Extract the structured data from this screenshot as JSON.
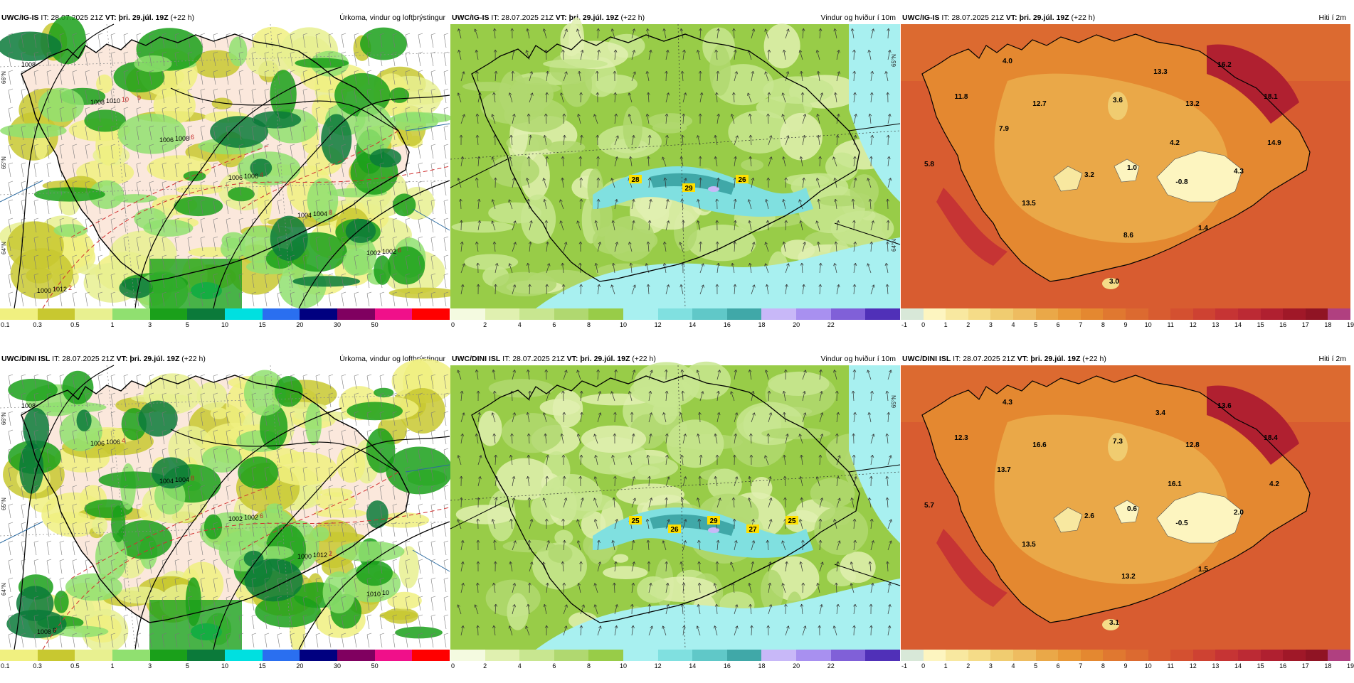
{
  "panels": [
    {
      "model": "UWC/IG-IS",
      "it_label": "IT:",
      "it": "28.07.2025 21Z",
      "vt_label": "VT:",
      "vt": "þri. 29.júl. 19Z",
      "lead": "(+22 h)",
      "title": "Úrkoma, vindur og loftþrýstingur",
      "type": "precip",
      "ticks": [
        "0.1",
        "0.3",
        "0.5",
        "1",
        "3",
        "5",
        "10",
        "15",
        "20",
        "30",
        "50"
      ],
      "colors": [
        "#f0f080",
        "#c8c830",
        "#e8f090",
        "#90e070",
        "#1aa01a",
        "#0b7a3a",
        "#00e0e0",
        "#2a6ff0",
        "#000080",
        "#800060",
        "#f0108a",
        "#ff0000"
      ],
      "map_labels": [
        "1008",
        "1008",
        "1006",
        "1006",
        "1004",
        "1002",
        "1000",
        "1010",
        "1008",
        "1006",
        "1004",
        "1002",
        "1012",
        "10",
        "6",
        "4",
        "8",
        "6",
        "2",
        "9"
      ],
      "lat_labels": [
        "66°N",
        "65°N",
        "64°N"
      ]
    },
    {
      "model": "UWC/IG-IS",
      "it_label": "IT:",
      "it": "28.07.2025 21Z",
      "vt_label": "VT:",
      "vt": "þri. 29.júl. 19Z",
      "lead": "(+22 h)",
      "title": "Vindur og hviður í 10m",
      "type": "wind",
      "ticks": [
        "0",
        "2",
        "4",
        "6",
        "8",
        "10",
        "12",
        "14",
        "16",
        "18",
        "20",
        "22"
      ],
      "colors": [
        "#f4fae0",
        "#e0f0b0",
        "#c8e690",
        "#b0d870",
        "#98cc48",
        "#a8f0f0",
        "#80e0e0",
        "#60c8c8",
        "#40a8a8",
        "#c8b8f8",
        "#a890f0",
        "#8060d8",
        "#5030b8"
      ],
      "values": [
        "28",
        "29",
        "26"
      ],
      "lat_labels": [
        "65°N",
        "64°N"
      ]
    },
    {
      "model": "UWC/IG-IS",
      "it_label": "IT:",
      "it": "28.07.2025 21Z",
      "vt_label": "VT:",
      "vt": "þri. 29.júl. 19Z",
      "lead": "(+22 h)",
      "title": "Hiti í 2m",
      "type": "temp",
      "ticks": [
        "-1",
        "0",
        "1",
        "2",
        "3",
        "4",
        "5",
        "6",
        "7",
        "8",
        "9",
        "10",
        "11",
        "12",
        "13",
        "14",
        "15",
        "16",
        "17",
        "18",
        "19"
      ],
      "colors": [
        "#d8e8d8",
        "#fdf5c0",
        "#f8e8a0",
        "#f5dc88",
        "#f0cc70",
        "#eebc60",
        "#eaa848",
        "#e89838",
        "#e48830",
        "#e07830",
        "#dc6a30",
        "#d85c30",
        "#d45030",
        "#ce4232",
        "#c63434",
        "#bc2a34",
        "#b02030",
        "#a01828",
        "#901424",
        "#b04080"
      ],
      "values": [
        "4.0",
        "11.8",
        "7.9",
        "12.7",
        "3.6",
        "13.3",
        "16.2",
        "18.1",
        "13.2",
        "14.9",
        "4.2",
        "5.8",
        "3.2",
        "1.0",
        "-0.8",
        "4.3",
        "13.5",
        "1.4",
        "8.6",
        "3.0"
      ]
    },
    {
      "model": "UWC/DINI ISL",
      "it_label": "IT:",
      "it": "28.07.2025 21Z",
      "vt_label": "VT:",
      "vt": "þri. 29.júl. 19Z",
      "lead": "(+22 h)",
      "title": "Úrkoma, vindur og loftþrýstingur",
      "type": "precip",
      "ticks": [
        "0.1",
        "0.3",
        "0.5",
        "1",
        "3",
        "5",
        "10",
        "15",
        "20",
        "30",
        "50"
      ],
      "colors": [
        "#f0f080",
        "#c8c830",
        "#e8f090",
        "#90e070",
        "#1aa01a",
        "#0b7a3a",
        "#00e0e0",
        "#2a6ff0",
        "#000080",
        "#800060",
        "#f0108a",
        "#ff0000"
      ],
      "map_labels": [
        "1008",
        "1006",
        "1004",
        "1002",
        "1000",
        "1010",
        "1008",
        "1006",
        "1004",
        "1002",
        "1012",
        "10",
        "6",
        "4",
        "8",
        "6",
        "2"
      ],
      "lat_labels": [
        "66°N",
        "65°N",
        "64°N"
      ]
    },
    {
      "model": "UWC/DINI ISL",
      "it_label": "IT:",
      "it": "28.07.2025 21Z",
      "vt_label": "VT:",
      "vt": "þri. 29.júl. 19Z",
      "lead": "(+22 h)",
      "title": "Vindur og hviður í 10m",
      "type": "wind",
      "ticks": [
        "0",
        "2",
        "4",
        "6",
        "8",
        "10",
        "12",
        "14",
        "16",
        "18",
        "20",
        "22"
      ],
      "colors": [
        "#f4fae0",
        "#e0f0b0",
        "#c8e690",
        "#b0d870",
        "#98cc48",
        "#a8f0f0",
        "#80e0e0",
        "#60c8c8",
        "#40a8a8",
        "#c8b8f8",
        "#a890f0",
        "#8060d8",
        "#5030b8"
      ],
      "values": [
        "25",
        "26",
        "29",
        "27",
        "25"
      ],
      "lat_labels": [
        "65°N"
      ]
    },
    {
      "model": "UWC/DINI ISL",
      "it_label": "IT:",
      "it": "28.07.2025 21Z",
      "vt_label": "VT:",
      "vt": "þri. 29.júl. 19Z",
      "lead": "(+22 h)",
      "title": "Hiti í 2m",
      "type": "temp",
      "ticks": [
        "-1",
        "0",
        "1",
        "2",
        "3",
        "4",
        "5",
        "6",
        "7",
        "8",
        "9",
        "10",
        "11",
        "12",
        "13",
        "14",
        "15",
        "16",
        "17",
        "18",
        "19"
      ],
      "colors": [
        "#d8e8d8",
        "#fdf5c0",
        "#f8e8a0",
        "#f5dc88",
        "#f0cc70",
        "#eebc60",
        "#eaa848",
        "#e89838",
        "#e48830",
        "#e07830",
        "#dc6a30",
        "#d85c30",
        "#d45030",
        "#ce4232",
        "#c63434",
        "#bc2a34",
        "#b02030",
        "#a01828",
        "#901424",
        "#b04080"
      ],
      "values": [
        "4.3",
        "12.3",
        "13.7",
        "16.6",
        "7.3",
        "3.4",
        "13.6",
        "18.4",
        "12.8",
        "4.2",
        "16.1",
        "5.7",
        "2.6",
        "0.6",
        "-0.5",
        "2.0",
        "13.5",
        "1.5",
        "13.2",
        "3.1"
      ]
    }
  ]
}
